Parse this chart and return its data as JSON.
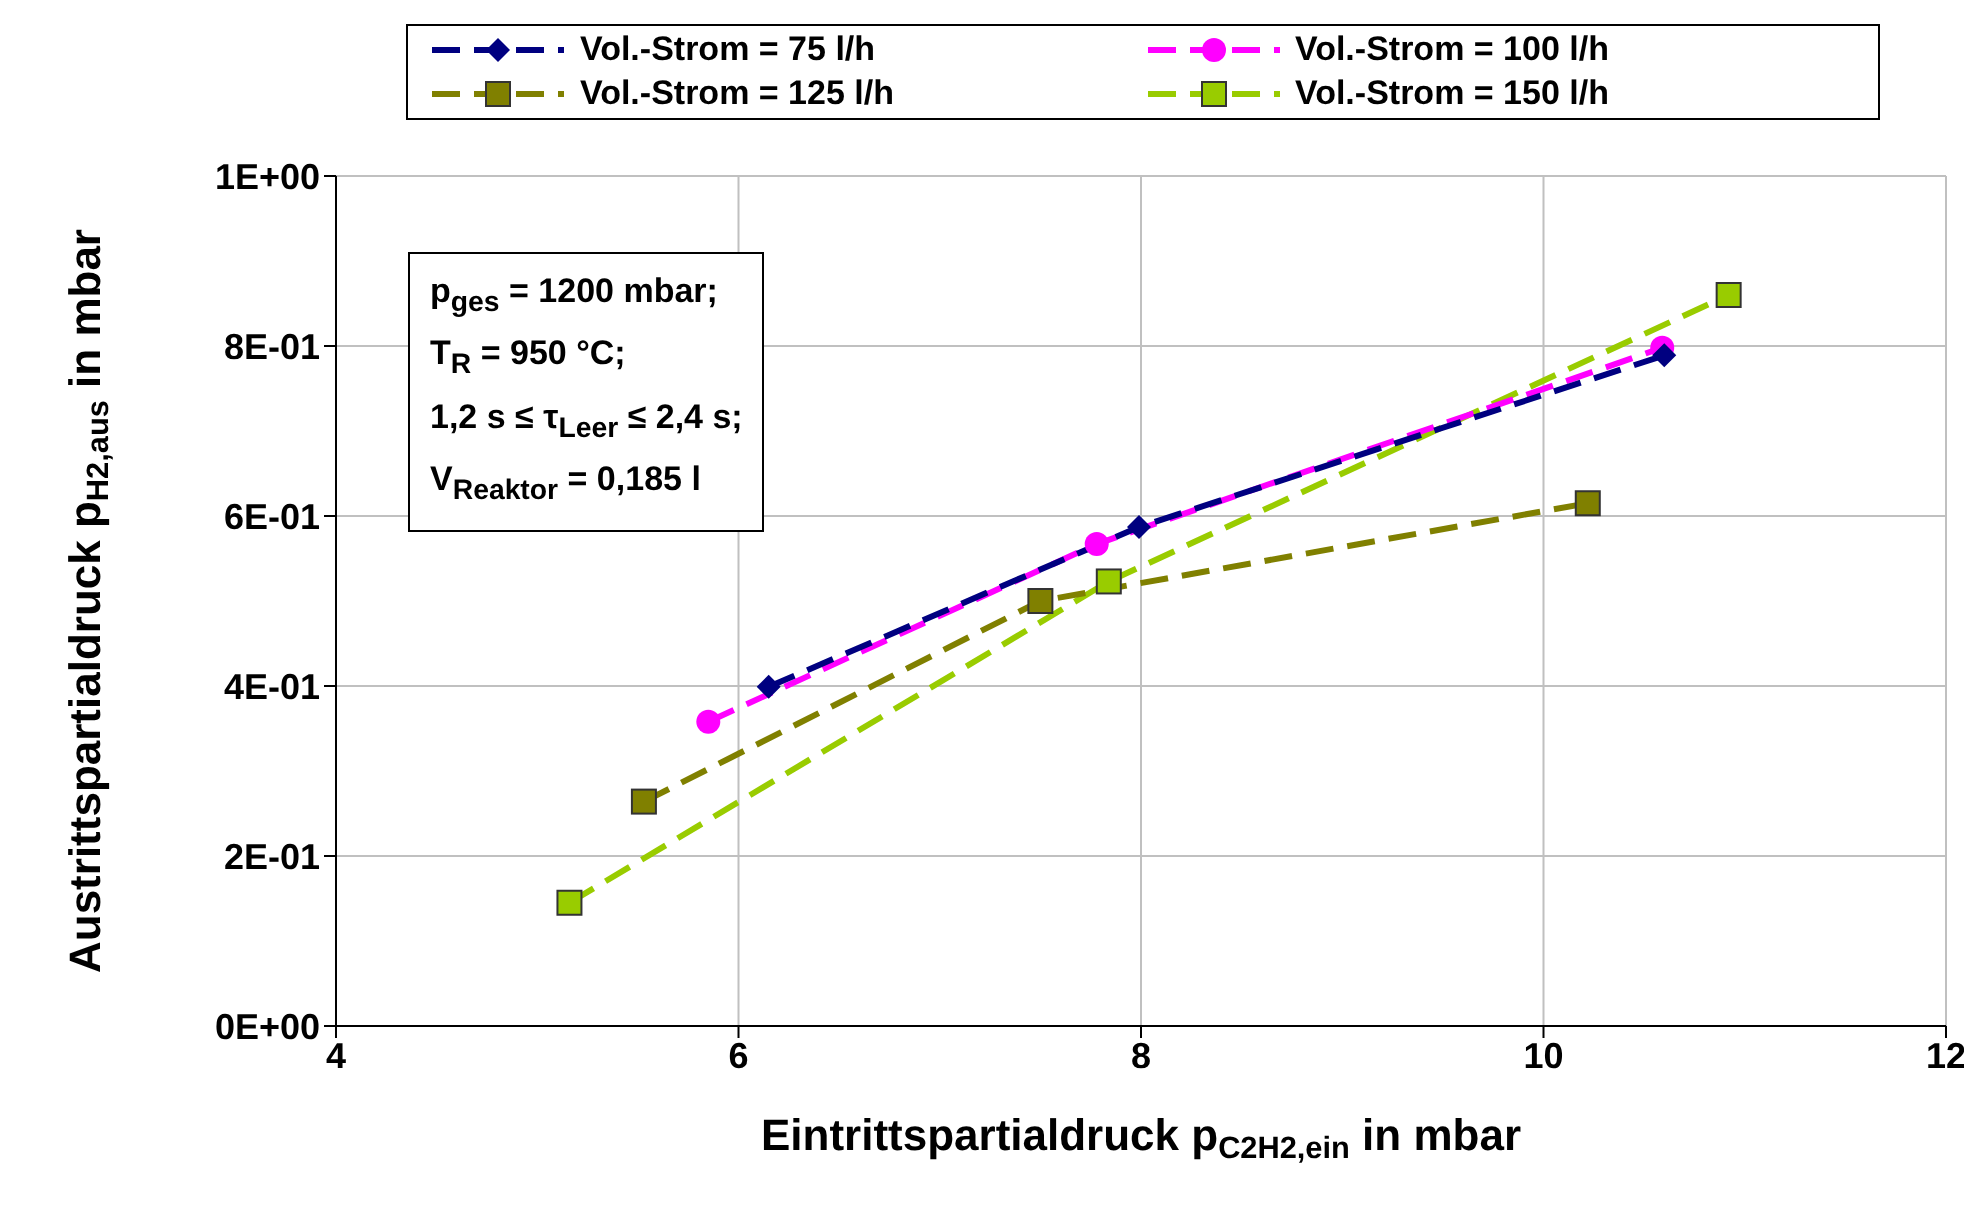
{
  "chart_data": {
    "type": "line",
    "xlabel": "Eintrittspartialdruck p$_{C2H2,ein}$ in mbar",
    "ylabel": "Austrittspartialdruck p$_{H2,aus}$ in mbar",
    "xlim": [
      4,
      12
    ],
    "xticks": [
      4,
      6,
      8,
      10,
      12
    ],
    "ylim": [
      0,
      1
    ],
    "yticks": [
      {
        "value": 0,
        "label": "0E+00"
      },
      {
        "value": 0.2,
        "label": "2E-01"
      },
      {
        "value": 0.4,
        "label": "4E-01"
      },
      {
        "value": 0.6,
        "label": "6E-01"
      },
      {
        "value": 0.8,
        "label": "8E-01"
      },
      {
        "value": 1,
        "label": "1E+00"
      }
    ],
    "grid": true,
    "legend": "top",
    "line_style": "dashed",
    "series": [
      {
        "name": "Vol.-Strom = 75 l/h",
        "color": "#000080",
        "marker": "diamond",
        "x": [
          6.15,
          7.99,
          10.6
        ],
        "values": [
          0.399,
          0.587,
          0.789
        ]
      },
      {
        "name": "Vol.-Strom = 100 l/h",
        "color": "#ff00ff",
        "marker": "circle",
        "x": [
          5.85,
          7.78,
          10.59
        ],
        "values": [
          0.358,
          0.567,
          0.798
        ]
      },
      {
        "name": "Vol.-Strom = 125 l/h",
        "color": "#808000",
        "marker": "square",
        "x": [
          5.53,
          7.5,
          10.22
        ],
        "values": [
          0.264,
          0.5,
          0.615
        ]
      },
      {
        "name": "Vol.-Strom = 150 l/h",
        "color": "#99cc00",
        "marker": "square",
        "x": [
          5.16,
          7.84,
          10.92
        ],
        "values": [
          0.145,
          0.523,
          0.86
        ]
      }
    ],
    "annotations": [
      "p$_{ges}$ = 1200 mbar;",
      "T$_{R}$ = 950 °C;",
      "1,2 s ≤ τ$_{Leer}$ ≤ 2,4 s;",
      "V$_{Reaktor}$ = 0,185 l"
    ]
  }
}
